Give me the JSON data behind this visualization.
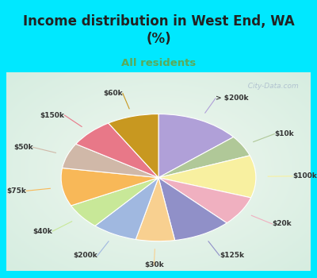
{
  "title": "Income distribution in West End, WA\n(%)",
  "subtitle": "All residents",
  "title_color": "#222222",
  "subtitle_color": "#5aaa5a",
  "bg_cyan": "#00e8ff",
  "bg_chart_color": "#d8ede0",
  "labels": [
    "> $200k",
    "$10k",
    "$100k",
    "$20k",
    "$125k",
    "$30k",
    "$200k",
    "$40k",
    "$75k",
    "$50k",
    "$150k",
    "$60k"
  ],
  "values": [
    13,
    5,
    10,
    7,
    9,
    6,
    7,
    6,
    9,
    6,
    7,
    8
  ],
  "colors": [
    "#b0a0d8",
    "#b0c898",
    "#f8f0a0",
    "#f0b0c0",
    "#9090c8",
    "#f8d090",
    "#a0b8e0",
    "#c8e898",
    "#f8b858",
    "#d0b8a8",
    "#e87888",
    "#c89820"
  ],
  "watermark": "  City-Data.com"
}
